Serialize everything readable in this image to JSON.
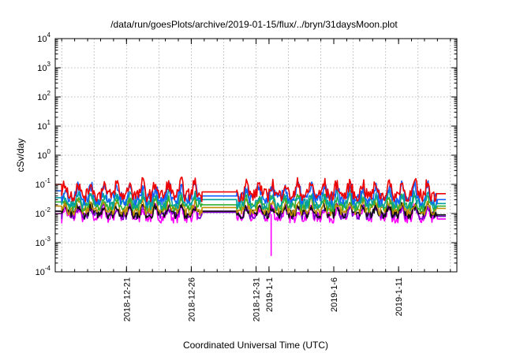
{
  "chart_data": {
    "type": "line",
    "title": "/data/run/goesPlots/archive/2019-01-15/flux/../bryn/31daysMoon.plot",
    "xlabel": "Coordinated Universal Time (UTC)",
    "ylabel": "cSv/day",
    "yscale": "log",
    "ylim": [
      0.0001,
      10000
    ],
    "xlim": [
      "2018-12-15T12:00",
      "2019-01-15T12:00"
    ],
    "grid": true,
    "y_ticks": [
      {
        "base": "10",
        "exp": "-4"
      },
      {
        "base": "10",
        "exp": "-3"
      },
      {
        "base": "10",
        "exp": "-2"
      },
      {
        "base": "10",
        "exp": "-1"
      },
      {
        "base": "10",
        "exp": "0"
      },
      {
        "base": "10",
        "exp": "1"
      },
      {
        "base": "10",
        "exp": "2"
      },
      {
        "base": "10",
        "exp": "3"
      },
      {
        "base": "10",
        "exp": "4"
      }
    ],
    "x_ticks": [
      {
        "label": "2018-12-21",
        "date": "2018-12-21"
      },
      {
        "label": "2018-12-26",
        "date": "2018-12-26"
      },
      {
        "label": "2018-12-31",
        "date": "2018-12-31"
      },
      {
        "label": "2019-1-1",
        "date": "2019-01-01"
      },
      {
        "label": "2019-1-6",
        "date": "2019-01-06"
      },
      {
        "label": "2019-1-11",
        "date": "2019-01-11"
      }
    ],
    "series": [
      {
        "color": "#ee0000",
        "level": 0.06,
        "amplitude": 0.75,
        "start_value": 0.1,
        "end_value": 0.048,
        "gap_value": 0.055
      },
      {
        "color": "#1060ff",
        "level": 0.045,
        "amplitude": 0.75,
        "start_value": 0.06,
        "end_value": 0.03,
        "gap_value": 0.04
      },
      {
        "color": "#00a0a0",
        "level": 0.028,
        "amplitude": 0.6,
        "start_value": 0.035,
        "end_value": 0.022,
        "gap_value": 0.03
      },
      {
        "color": "#30b030",
        "level": 0.022,
        "amplitude": 0.55,
        "start_value": 0.025,
        "end_value": 0.018,
        "gap_value": 0.02
      },
      {
        "color": "#c09000",
        "level": 0.016,
        "amplitude": 0.55,
        "start_value": 0.018,
        "end_value": 0.015,
        "gap_value": 0.016
      },
      {
        "color": "#101010",
        "level": 0.012,
        "amplitude": 0.5,
        "start_value": 0.012,
        "end_value": 0.009,
        "gap_value": 0.012
      },
      {
        "color": "#7a00c8",
        "level": 0.011,
        "amplitude": 0.5,
        "start_value": 0.012,
        "end_value": 0.008,
        "gap_value": 0.011
      },
      {
        "color": "#ff00ff",
        "level": 0.0095,
        "amplitude": 0.6,
        "start_value": 0.01,
        "end_value": 0.0065,
        "gap_value": 0.012
      }
    ],
    "gap": {
      "from": "2018-12-26T20:00",
      "to": "2018-12-29T12:00"
    },
    "dip": {
      "date": "2019-01-01T04:00",
      "value": 0.00035
    }
  }
}
